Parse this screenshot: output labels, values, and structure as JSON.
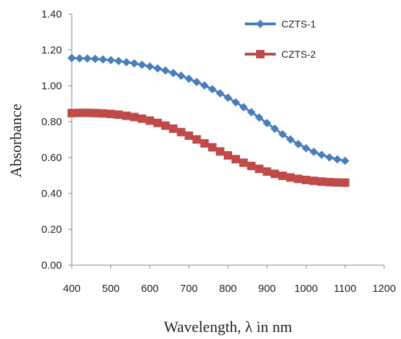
{
  "chart_data": {
    "type": "line",
    "title": "",
    "xlabel": "Wavelength, λ in nm",
    "ylabel": "Absorbance",
    "xlim": [
      400,
      1200
    ],
    "ylim": [
      0.0,
      1.4
    ],
    "x_ticks": [
      "400",
      "500",
      "600",
      "700",
      "800",
      "900",
      "1000",
      "1100",
      "1200"
    ],
    "y_ticks": [
      "0.00",
      "0.20",
      "0.40",
      "0.60",
      "0.80",
      "1.00",
      "1.20",
      "1.40"
    ],
    "grid": false,
    "legend_position": "top-right",
    "x": [
      400,
      420,
      440,
      460,
      480,
      500,
      520,
      540,
      560,
      580,
      600,
      620,
      640,
      660,
      680,
      700,
      720,
      740,
      760,
      780,
      800,
      820,
      840,
      860,
      880,
      900,
      920,
      940,
      960,
      980,
      1000,
      1020,
      1040,
      1060,
      1080,
      1100
    ],
    "series": [
      {
        "name": "CZTS-1",
        "color": "#4a7ebb",
        "marker": "diamond",
        "values": [
          1.155,
          1.153,
          1.152,
          1.15,
          1.147,
          1.143,
          1.138,
          1.132,
          1.125,
          1.117,
          1.108,
          1.097,
          1.085,
          1.071,
          1.056,
          1.039,
          1.021,
          1.002,
          0.981,
          0.958,
          0.934,
          0.908,
          0.881,
          0.853,
          0.823,
          0.792,
          0.761,
          0.73,
          0.701,
          0.675,
          0.652,
          0.632,
          0.615,
          0.601,
          0.59,
          0.582
        ]
      },
      {
        "name": "CZTS-2",
        "color": "#be4b48",
        "marker": "square",
        "values": [
          0.848,
          0.849,
          0.849,
          0.848,
          0.846,
          0.843,
          0.839,
          0.833,
          0.826,
          0.817,
          0.806,
          0.793,
          0.778,
          0.761,
          0.742,
          0.722,
          0.701,
          0.679,
          0.657,
          0.634,
          0.612,
          0.591,
          0.571,
          0.553,
          0.537,
          0.522,
          0.509,
          0.498,
          0.489,
          0.481,
          0.475,
          0.47,
          0.466,
          0.463,
          0.461,
          0.46
        ]
      }
    ]
  }
}
